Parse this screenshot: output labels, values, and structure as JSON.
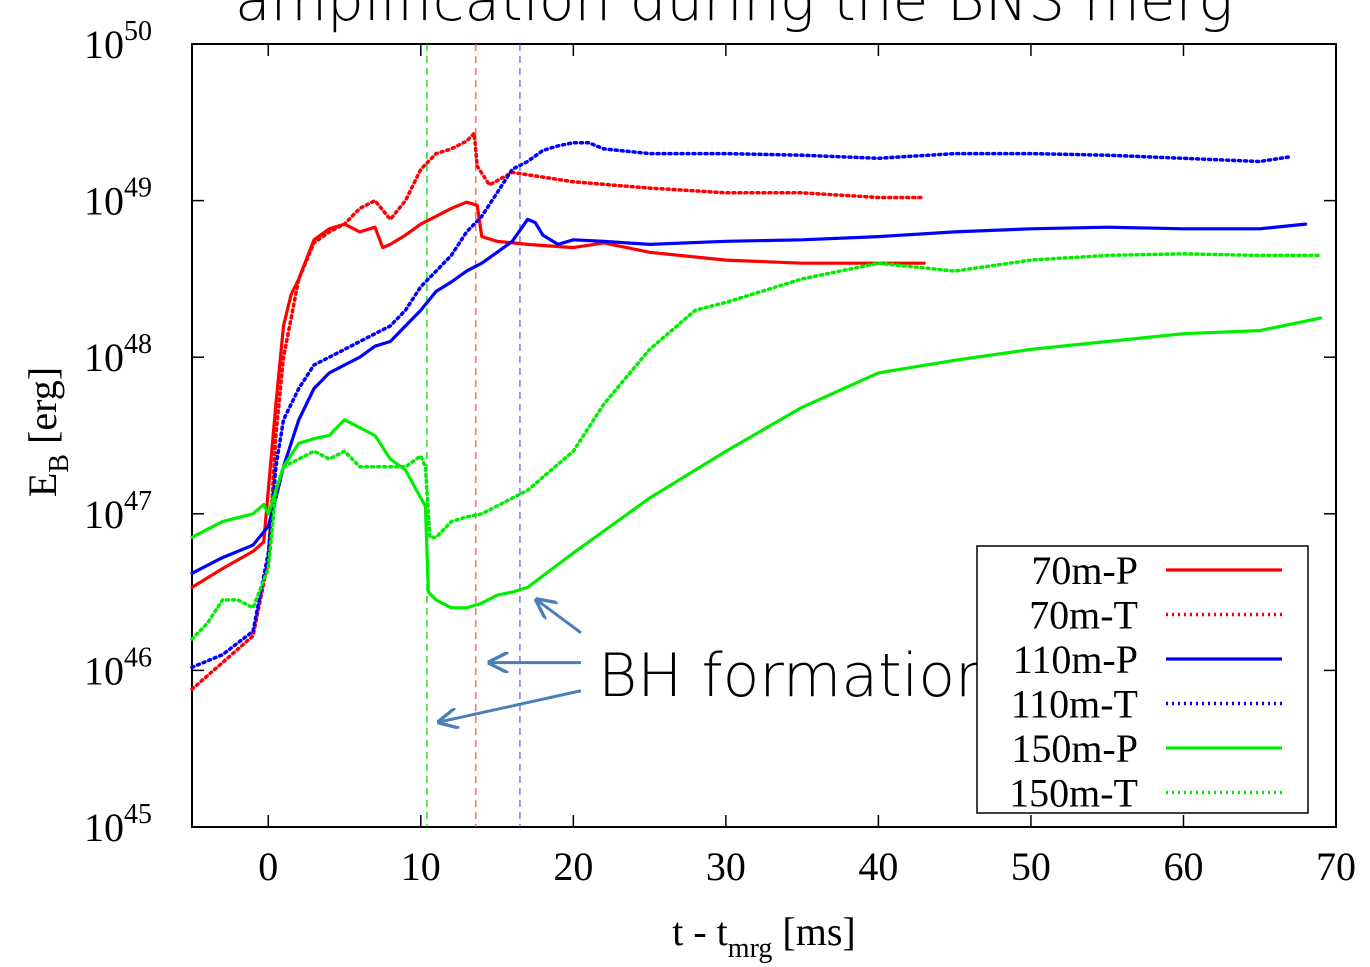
{
  "chart_data": {
    "type": "line",
    "title": "amplification during the BNS merg",
    "xlabel_main": "t - t",
    "xlabel_sub": "mrg",
    "xlabel_unit": " [ms]",
    "ylabel_main": "E",
    "ylabel_sub": "B",
    "ylabel_unit": " [erg]",
    "xlim": [
      -5,
      70
    ],
    "ylim_log10": [
      45,
      50
    ],
    "y_scale": "log",
    "x_ticks": [
      {
        "value": 0,
        "label": "0"
      },
      {
        "value": 10,
        "label": "10"
      },
      {
        "value": 20,
        "label": "20"
      },
      {
        "value": 30,
        "label": "30"
      },
      {
        "value": 40,
        "label": "40"
      },
      {
        "value": 50,
        "label": "50"
      },
      {
        "value": 60,
        "label": "60"
      },
      {
        "value": 70,
        "label": "70"
      }
    ],
    "y_ticks": [
      {
        "value": 45,
        "base": "10",
        "exp": "45"
      },
      {
        "value": 46,
        "base": "10",
        "exp": "46"
      },
      {
        "value": 47,
        "base": "10",
        "exp": "47"
      },
      {
        "value": 48,
        "base": "10",
        "exp": "48"
      },
      {
        "value": 49,
        "base": "10",
        "exp": "49"
      },
      {
        "value": 50,
        "base": "10",
        "exp": "50"
      }
    ],
    "grid": false,
    "legend_position": "bottom-right",
    "vlines": [
      {
        "x": 10.4,
        "color": "#00cc00"
      },
      {
        "x": 13.6,
        "color": "#ff4444"
      },
      {
        "x": 16.5,
        "color": "#5555ff"
      }
    ],
    "annotation": {
      "text": "BH formation",
      "color": "#4a7ebb",
      "arrows": [
        {
          "from": [
            20.5,
            46.24
          ],
          "to": [
            17.6,
            46.45
          ]
        },
        {
          "from": [
            20.5,
            46.05
          ],
          "to": [
            14.5,
            46.05
          ]
        },
        {
          "from": [
            20.5,
            45.87
          ],
          "to": [
            11.2,
            45.67
          ]
        }
      ]
    },
    "series": [
      {
        "name": "70m-P",
        "color": "#ff0000",
        "dash": "solid",
        "x": [
          -5,
          -3,
          -1,
          -0.3,
          0,
          0.5,
          1,
          1.5,
          2,
          3,
          4,
          5,
          6,
          7,
          7.5,
          8,
          9,
          10,
          11,
          12,
          13,
          13.7,
          14,
          15,
          17,
          20,
          22,
          25,
          30,
          35,
          40,
          43
        ],
        "y": [
          46.53,
          46.65,
          46.76,
          46.82,
          47.15,
          47.7,
          48.2,
          48.4,
          48.5,
          48.75,
          48.82,
          48.85,
          48.8,
          48.83,
          48.7,
          48.72,
          48.78,
          48.85,
          48.9,
          48.95,
          48.99,
          48.97,
          48.77,
          48.74,
          48.72,
          48.7,
          48.73,
          48.67,
          48.62,
          48.6,
          48.6,
          48.6
        ]
      },
      {
        "name": "70m-T",
        "color": "#ff0000",
        "dash": "dotted",
        "x": [
          -5,
          -3,
          -1,
          0,
          0.5,
          1,
          2,
          3,
          4,
          5,
          6,
          7,
          8,
          9,
          10,
          11,
          12,
          13,
          13.5,
          13.7,
          14.5,
          16,
          18,
          20,
          25,
          30,
          35,
          40,
          43
        ],
        "y": [
          45.88,
          46.05,
          46.22,
          46.7,
          47.5,
          48.0,
          48.5,
          48.73,
          48.8,
          48.85,
          48.95,
          49.0,
          48.88,
          49.0,
          49.2,
          49.3,
          49.33,
          49.38,
          49.43,
          49.22,
          49.1,
          49.18,
          49.15,
          49.12,
          49.08,
          49.05,
          49.05,
          49.02,
          49.02
        ]
      },
      {
        "name": "110m-P",
        "color": "#0000ff",
        "dash": "solid",
        "x": [
          -5,
          -3,
          -1,
          0,
          0.5,
          1,
          2,
          3,
          4,
          5,
          6,
          7,
          8,
          9,
          10,
          11,
          12,
          13,
          14,
          15,
          16,
          17,
          17.5,
          18,
          19,
          20,
          22,
          25,
          30,
          35,
          40,
          45,
          50,
          55,
          60,
          65,
          68
        ],
        "y": [
          46.62,
          46.72,
          46.8,
          46.92,
          47.1,
          47.3,
          47.6,
          47.8,
          47.9,
          47.95,
          48.0,
          48.07,
          48.1,
          48.2,
          48.3,
          48.42,
          48.48,
          48.55,
          48.6,
          48.67,
          48.74,
          48.88,
          48.86,
          48.78,
          48.72,
          48.75,
          48.74,
          48.72,
          48.74,
          48.75,
          48.77,
          48.8,
          48.82,
          48.83,
          48.82,
          48.82,
          48.85
        ]
      },
      {
        "name": "110m-T",
        "color": "#0000ff",
        "dash": "dotted",
        "x": [
          -5,
          -3,
          -1,
          0,
          0.5,
          1,
          2,
          3,
          4,
          5,
          6,
          7,
          8,
          9,
          10,
          11,
          12,
          13,
          14,
          15,
          16,
          17,
          18,
          19,
          20,
          21,
          22,
          25,
          30,
          35,
          40,
          45,
          50,
          55,
          60,
          65,
          67
        ],
        "y": [
          46.02,
          46.1,
          46.25,
          46.75,
          47.3,
          47.6,
          47.8,
          47.95,
          48.0,
          48.05,
          48.1,
          48.15,
          48.2,
          48.3,
          48.45,
          48.55,
          48.65,
          48.8,
          48.9,
          49.05,
          49.2,
          49.25,
          49.32,
          49.35,
          49.37,
          49.37,
          49.33,
          49.3,
          49.3,
          49.29,
          49.27,
          49.3,
          49.3,
          49.29,
          49.27,
          49.25,
          49.28
        ]
      },
      {
        "name": "150m-P",
        "color": "#00ee00",
        "dash": "solid",
        "x": [
          -5,
          -3,
          -1,
          -0.3,
          0,
          1,
          2,
          3,
          4,
          5,
          6,
          7,
          8,
          9,
          10,
          10.3,
          10.5,
          11,
          12,
          13,
          14,
          15,
          16,
          17,
          20,
          25,
          30,
          35,
          40,
          45,
          50,
          55,
          60,
          65,
          69
        ],
        "y": [
          46.85,
          46.95,
          47.0,
          47.06,
          47.0,
          47.3,
          47.45,
          47.48,
          47.5,
          47.6,
          47.55,
          47.5,
          47.35,
          47.28,
          47.1,
          47.05,
          46.5,
          46.45,
          46.4,
          46.4,
          46.43,
          46.48,
          46.5,
          46.53,
          46.75,
          47.1,
          47.4,
          47.68,
          47.9,
          47.98,
          48.05,
          48.1,
          48.15,
          48.17,
          48.25
        ]
      },
      {
        "name": "150m-T",
        "color": "#00ee00",
        "dash": "dotted",
        "x": [
          -5,
          -4,
          -3,
          -2,
          -1,
          0,
          0.5,
          1,
          2,
          3,
          4,
          5,
          6,
          7,
          8,
          9,
          10,
          10.3,
          10.6,
          11,
          12,
          13,
          14,
          15,
          16,
          17,
          20,
          22,
          25,
          28,
          30,
          35,
          40,
          45,
          50,
          55,
          60,
          65,
          69
        ],
        "y": [
          46.2,
          46.3,
          46.45,
          46.45,
          46.4,
          46.65,
          47.15,
          47.3,
          47.35,
          47.4,
          47.35,
          47.4,
          47.3,
          47.3,
          47.3,
          47.3,
          47.37,
          47.3,
          46.85,
          46.85,
          46.95,
          46.98,
          47.0,
          47.05,
          47.1,
          47.15,
          47.4,
          47.7,
          48.05,
          48.3,
          48.35,
          48.5,
          48.6,
          48.55,
          48.62,
          48.65,
          48.66,
          48.65,
          48.65
        ]
      }
    ]
  }
}
